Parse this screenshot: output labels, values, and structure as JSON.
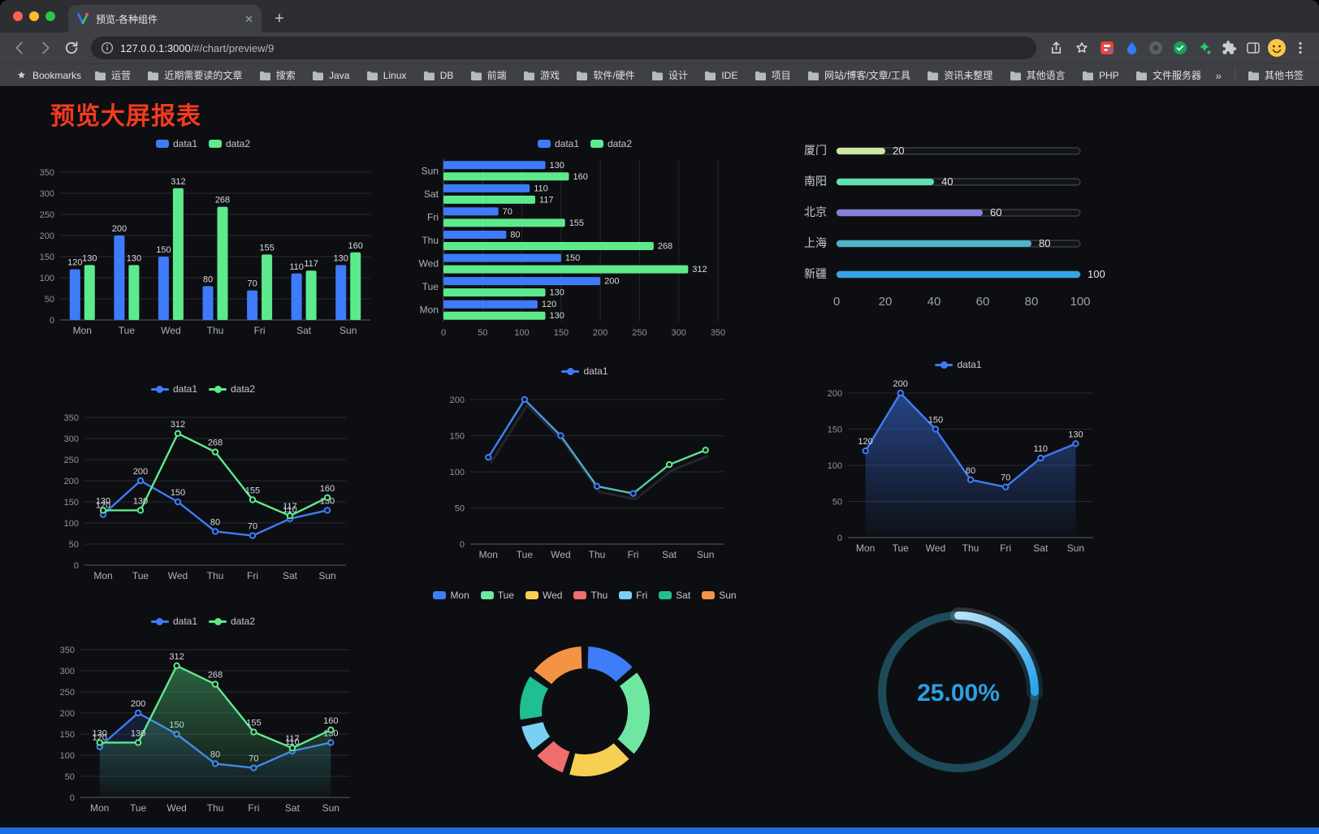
{
  "browser": {
    "tab": {
      "title": "预览-各种组件"
    },
    "url_host": "127.0.0.1:3000",
    "url_path": "/#/chart/preview/9",
    "bookmarks_bar": {
      "bookmarks_label": "Bookmarks",
      "folders": [
        "运营",
        "近期需要读的文章",
        "搜索",
        "Java",
        "Linux",
        "DB",
        "前端",
        "游戏",
        "软件/硬件",
        "设计",
        "IDE",
        "项目",
        "网站/博客/文章/工具",
        "资讯未整理",
        "其他语言",
        "PHP",
        "文件服务器"
      ],
      "overflow_chevron": "»",
      "other_bookmarks": "其他书签"
    }
  },
  "page": {
    "title": "预览大屏报表"
  },
  "chart_data": [
    {
      "id": "grouped-bar",
      "type": "bar",
      "categories": [
        "Mon",
        "Tue",
        "Wed",
        "Thu",
        "Fri",
        "Sat",
        "Sun"
      ],
      "series": [
        {
          "name": "data1",
          "color": "#3e7bfa",
          "values": [
            120,
            200,
            150,
            80,
            70,
            110,
            130
          ]
        },
        {
          "name": "data2",
          "color": "#5dea8d",
          "values": [
            130,
            130,
            312,
            268,
            155,
            117,
            160
          ]
        }
      ],
      "ylim": [
        0,
        350
      ],
      "yticks": [
        0,
        50,
        100,
        150,
        200,
        250,
        300,
        350
      ],
      "show_labels": true,
      "legend_position": "top"
    },
    {
      "id": "horizontal-bar",
      "type": "bar-horizontal",
      "categories": [
        "Mon",
        "Tue",
        "Wed",
        "Thu",
        "Fri",
        "Sat",
        "Sun"
      ],
      "series": [
        {
          "name": "data1",
          "color": "#3e7bfa",
          "values": [
            120,
            200,
            150,
            80,
            70,
            110,
            130
          ]
        },
        {
          "name": "data2",
          "color": "#5dea8d",
          "values": [
            130,
            130,
            312,
            268,
            155,
            117,
            160
          ]
        }
      ],
      "xlim": [
        0,
        350
      ],
      "xticks": [
        0,
        50,
        100,
        150,
        200,
        250,
        300,
        350
      ],
      "show_labels": true,
      "legend_position": "top"
    },
    {
      "id": "city-progress",
      "type": "progress",
      "rows": [
        {
          "label": "厦门",
          "value": 20,
          "color": "#cde79e"
        },
        {
          "label": "南阳",
          "value": 40,
          "color": "#5fe0b0"
        },
        {
          "label": "北京",
          "value": 60,
          "color": "#8280d8"
        },
        {
          "label": "上海",
          "value": 80,
          "color": "#4fb3c9"
        },
        {
          "label": "新疆",
          "value": 100,
          "color": "#35a5ea"
        }
      ],
      "xlim": [
        0,
        100
      ],
      "xticks": [
        0,
        20,
        40,
        60,
        80,
        100
      ]
    },
    {
      "id": "line-two-series",
      "type": "line",
      "categories": [
        "Mon",
        "Tue",
        "Wed",
        "Thu",
        "Fri",
        "Sat",
        "Sun"
      ],
      "series": [
        {
          "name": "data1",
          "color": "#3e7bfa",
          "values": [
            120,
            200,
            150,
            80,
            70,
            110,
            130
          ]
        },
        {
          "name": "data2",
          "color": "#5dea8d",
          "values": [
            130,
            130,
            312,
            268,
            155,
            117,
            160
          ]
        }
      ],
      "ylim": [
        0,
        350
      ],
      "yticks": [
        0,
        50,
        100,
        150,
        200,
        250,
        300,
        350
      ],
      "show_labels": true,
      "legend_position": "top"
    },
    {
      "id": "gradient-line",
      "type": "line",
      "categories": [
        "Mon",
        "Tue",
        "Wed",
        "Thu",
        "Fri",
        "Sat",
        "Sun"
      ],
      "series": [
        {
          "name": "data1",
          "color": "#3e7bfa",
          "gradient": [
            "#3e7bfa",
            "#5dea8d"
          ],
          "shadow": true,
          "values": [
            120,
            200,
            150,
            80,
            70,
            110,
            130
          ]
        }
      ],
      "ylim": [
        0,
        200
      ],
      "yticks": [
        0,
        50,
        100,
        150,
        200
      ],
      "show_labels": false,
      "legend_position": "top"
    },
    {
      "id": "area-single",
      "type": "area",
      "categories": [
        "Mon",
        "Tue",
        "Wed",
        "Thu",
        "Fri",
        "Sat",
        "Sun"
      ],
      "series": [
        {
          "name": "data1",
          "color": "#3e7bfa",
          "area": true,
          "area_opacity": 0.5,
          "values": [
            120,
            200,
            150,
            80,
            70,
            110,
            130
          ]
        }
      ],
      "ylim": [
        0,
        200
      ],
      "yticks": [
        0,
        50,
        100,
        150,
        200
      ],
      "show_labels": true,
      "legend_position": "top"
    },
    {
      "id": "area-two-series",
      "type": "area",
      "categories": [
        "Mon",
        "Tue",
        "Wed",
        "Thu",
        "Fri",
        "Sat",
        "Sun"
      ],
      "series": [
        {
          "name": "data1",
          "color": "#3e7bfa",
          "area": true,
          "area_opacity": 0.18,
          "values": [
            120,
            200,
            150,
            80,
            70,
            110,
            130
          ]
        },
        {
          "name": "data2",
          "color": "#5dea8d",
          "area": true,
          "area_opacity": 0.38,
          "values": [
            130,
            130,
            312,
            268,
            155,
            117,
            160
          ]
        }
      ],
      "ylim": [
        0,
        350
      ],
      "yticks": [
        0,
        50,
        100,
        150,
        200,
        250,
        300,
        350
      ],
      "show_labels": true,
      "legend_position": "top"
    },
    {
      "id": "weekday-donut",
      "type": "donut",
      "categories": [
        "Mon",
        "Tue",
        "Wed",
        "Thu",
        "Fri",
        "Sat",
        "Sun"
      ],
      "values": [
        120,
        200,
        150,
        80,
        70,
        110,
        130
      ],
      "colors": [
        "#3f7cf8",
        "#6fe7a2",
        "#f6cf53",
        "#f06e6e",
        "#79cff4",
        "#1fbf92",
        "#f59345"
      ],
      "legend_position": "top"
    },
    {
      "id": "percent-gauge",
      "type": "gauge",
      "value": 25,
      "display": "25.00%",
      "color": "#2d9fe6",
      "track_color": "#1d4a58"
    }
  ]
}
